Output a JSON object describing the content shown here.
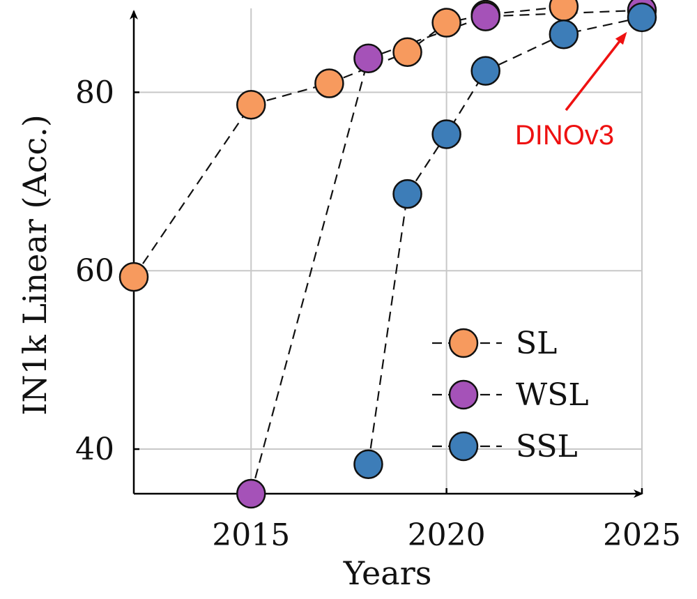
{
  "chart_data": {
    "type": "line",
    "title": "",
    "xlabel": "Years",
    "ylabel": "IN1k Linear (Acc.)",
    "xlim": [
      2012,
      2025
    ],
    "ylim": [
      35,
      88
    ],
    "xticks": [
      2015,
      2020,
      2025
    ],
    "yticks": [
      40,
      60,
      80
    ],
    "grid": true,
    "legend_position": "bottom-right",
    "series": [
      {
        "name": "SL",
        "color": "#f79a5e",
        "x": [
          2012,
          2015,
          2017,
          2019,
          2020,
          2021,
          2023
        ],
        "y": [
          59.3,
          78.6,
          81.0,
          84.5,
          87.8,
          88.7,
          89.6
        ]
      },
      {
        "name": "WSL",
        "color": "#a552b8",
        "x": [
          2015,
          2018,
          2021,
          2025
        ],
        "y": [
          35.0,
          83.8,
          88.5,
          89.2
        ]
      },
      {
        "name": "SSL",
        "color": "#3d7db8",
        "x": [
          2018,
          2019,
          2020,
          2021,
          2023,
          2025
        ],
        "y": [
          38.3,
          68.6,
          75.3,
          82.4,
          86.5,
          88.4
        ]
      }
    ],
    "annotations": [
      {
        "text": "DINOv3",
        "color": "#ee1111",
        "x": 2025,
        "y": 88.4
      }
    ]
  }
}
